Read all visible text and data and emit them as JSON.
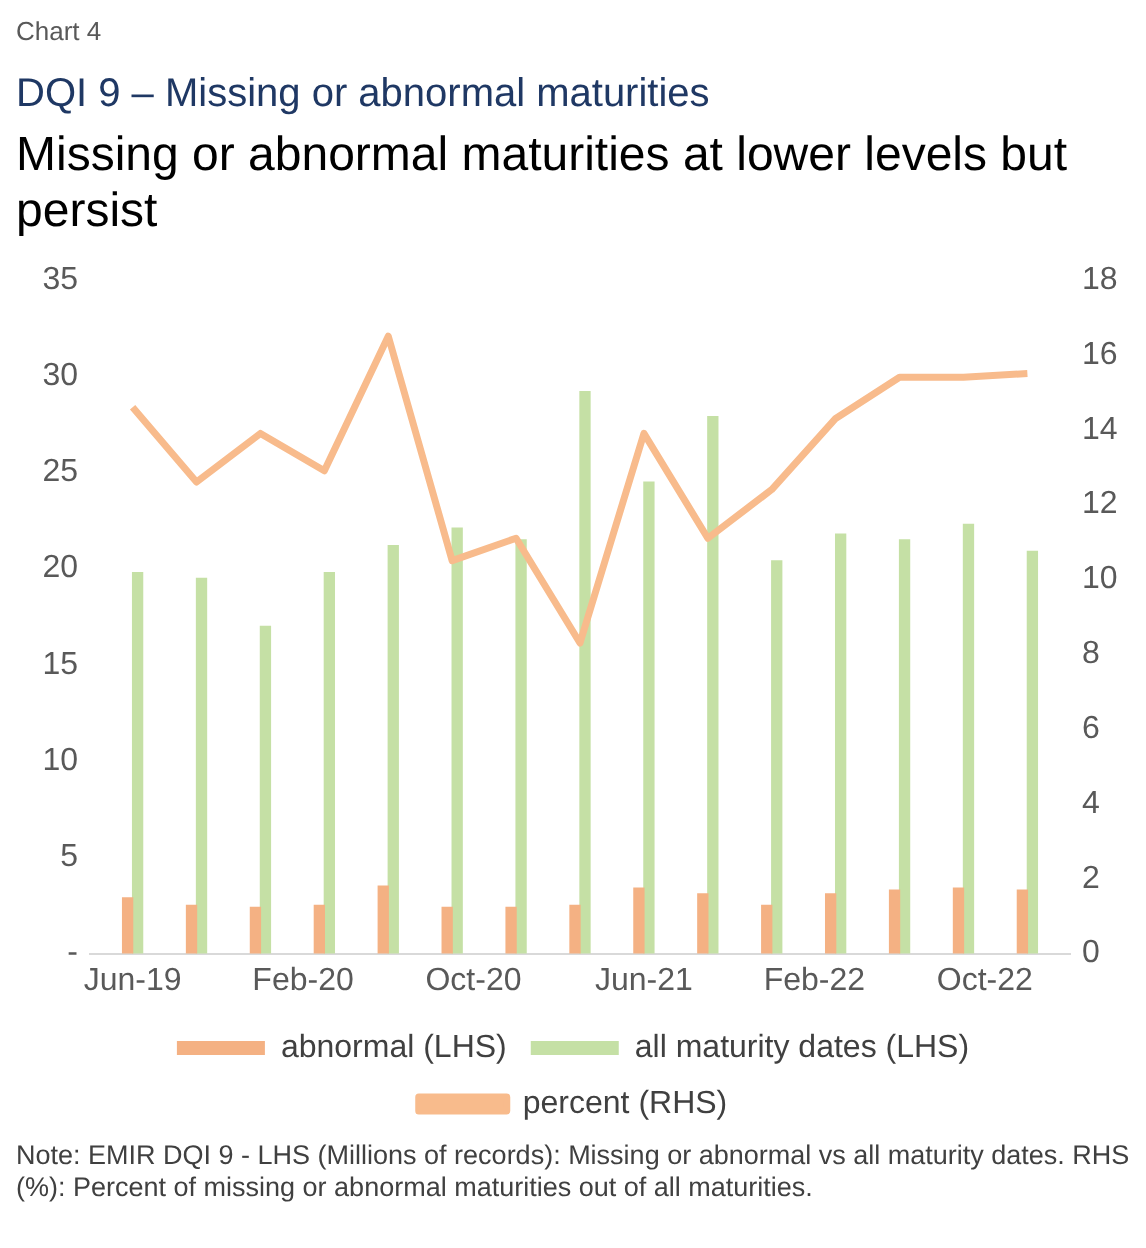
{
  "chart_data": {
    "type": "bar",
    "title": "Missing or abnormal maturities at lower levels but persist",
    "subtitle": "DQI 9 – Missing or abnormal maturities",
    "annotations": [
      "Chart  4",
      "Note: EMIR DQI 9 - LHS (Millions of records): Missing or abnormal vs all maturity dates. RHS (%): Percent of missing or abnormal maturities out of all maturities."
    ],
    "x": [
      "2019-06",
      "2019-09",
      "2019-12",
      "2020-03",
      "2020-06",
      "2020-09",
      "2020-12",
      "2021-03",
      "2021-06",
      "2021-09",
      "2021-12",
      "2022-03",
      "2022-06",
      "2022-09",
      "2022-12"
    ],
    "series": [
      {
        "name": "abnormal (LHS)",
        "axis": "y",
        "color": "#f4b183",
        "values": [
          2.9,
          2.5,
          2.4,
          2.5,
          3.5,
          2.4,
          2.4,
          2.5,
          3.4,
          3.1,
          2.5,
          3.1,
          3.3,
          3.4,
          3.3
        ]
      },
      {
        "name": "all maturity dates (LHS)",
        "axis": "y",
        "color": "#c5e0a5",
        "values": [
          19.8,
          19.5,
          17.0,
          19.8,
          21.2,
          22.1,
          21.5,
          29.2,
          24.5,
          27.9,
          20.4,
          21.8,
          21.5,
          22.3,
          20.9
        ]
      },
      {
        "name": "percent (RHS)",
        "type": "line",
        "axis": "y2",
        "color": "#f8bb8c",
        "values": [
          14.6,
          12.6,
          13.9,
          12.9,
          16.5,
          10.5,
          11.1,
          8.3,
          13.9,
          11.1,
          12.4,
          14.3,
          15.4,
          15.4,
          15.5
        ]
      }
    ],
    "xlim": [
      "2019-04",
      "2023-02"
    ],
    "xticks": [
      {
        "value": "2019-06",
        "label": "Jun-19"
      },
      {
        "value": "2020-02",
        "label": "Feb-20"
      },
      {
        "value": "2020-10",
        "label": "Oct-20"
      },
      {
        "value": "2021-06",
        "label": "Jun-21"
      },
      {
        "value": "2022-02",
        "label": "Feb-22"
      },
      {
        "value": "2022-10",
        "label": "Oct-22"
      }
    ],
    "ylim": [
      0,
      35
    ],
    "yticks": [
      {
        "value": 0,
        "label": "-"
      },
      5,
      10,
      15,
      20,
      25,
      30,
      35
    ],
    "y2lim": [
      0,
      18
    ],
    "y2ticks": [
      0,
      2,
      4,
      6,
      8,
      10,
      12,
      14,
      16,
      18
    ],
    "grid": false,
    "legend": "bottom",
    "marker": "none",
    "line_style": "solid"
  }
}
